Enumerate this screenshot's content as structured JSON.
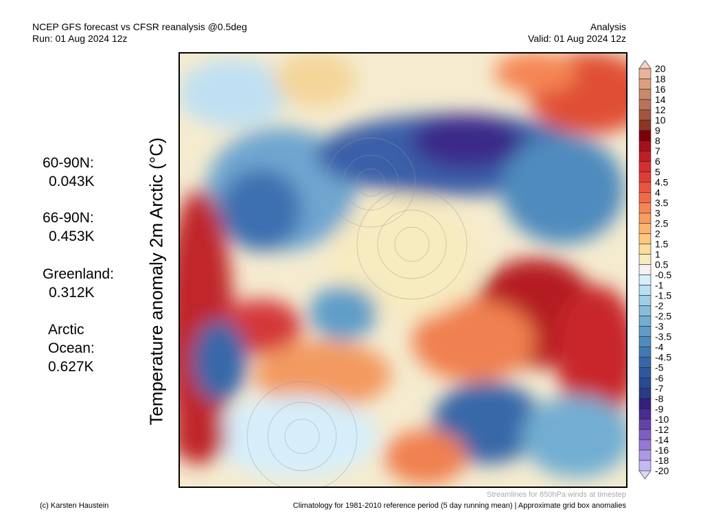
{
  "header": {
    "title_line1": "NCEP GFS forecast vs CFSR reanalysis @0.5deg",
    "title_line2": "Run: 01 Aug 2024 12z",
    "right_line1": "Analysis",
    "right_line2": "Valid: 01 Aug 2024 12z"
  },
  "stats": [
    {
      "label": "60-90N:",
      "value": "0.043K"
    },
    {
      "label": "66-90N:",
      "value": "0.453K"
    },
    {
      "label": "Greenland:",
      "value": "0.312K"
    },
    {
      "label": "Arctic",
      "label2": "Ocean:",
      "value": "0.627K"
    }
  ],
  "footer": {
    "streamlines_note": "Streamlines for 850hPa winds at timestep",
    "credit": "(c) Karsten Haustein",
    "climatology_note": "Climatology for 1981-2010 reference period (5 day running mean) | Approximate grid box anomalies"
  },
  "chart_data": {
    "type": "heatmap",
    "title": "NCEP GFS forecast vs CFSR reanalysis @0.5deg",
    "ylabel": "Temperature anomaly 2m Arctic (°C)",
    "colorbar": {
      "labels": [
        "20",
        "18",
        "16",
        "14",
        "12",
        "10",
        "9",
        "8",
        "7",
        "6",
        "5",
        "4.5",
        "4",
        "3.5",
        "3",
        "2.5",
        "2",
        "1.5",
        "1",
        "0.5",
        "-0.5",
        "-1",
        "-1.5",
        "-2",
        "-2.5",
        "-3",
        "-3.5",
        "-4",
        "-4.5",
        "-5",
        "-6",
        "-7",
        "-8",
        "-9",
        "-10",
        "-12",
        "-14",
        "-16",
        "-18",
        "-20"
      ],
      "colors": [
        "#f9d2bd",
        "#e8b39a",
        "#dca080",
        "#c98a6a",
        "#b8735a",
        "#a3553e",
        "#8e3525",
        "#7d0008",
        "#a60f1c",
        "#c01f26",
        "#d52e2e",
        "#e03c35",
        "#ea5540",
        "#f06a48",
        "#f58553",
        "#f99b5d",
        "#fdb46c",
        "#fdc77d",
        "#fbdc9c",
        "#f7ebc0",
        "#f2f2f2",
        "#d6eefa",
        "#b9dff0",
        "#9fcfe6",
        "#86bddb",
        "#72aed2",
        "#5f9dc8",
        "#4f8bbe",
        "#4179b2",
        "#3767a8",
        "#30589f",
        "#2b4a94",
        "#2a3b88",
        "#341f7a",
        "#4a2c92",
        "#6243ac",
        "#7d5ec2",
        "#9579d4",
        "#ad98e6",
        "#c6b8f3",
        "#dcd6fb"
      ]
    }
  }
}
